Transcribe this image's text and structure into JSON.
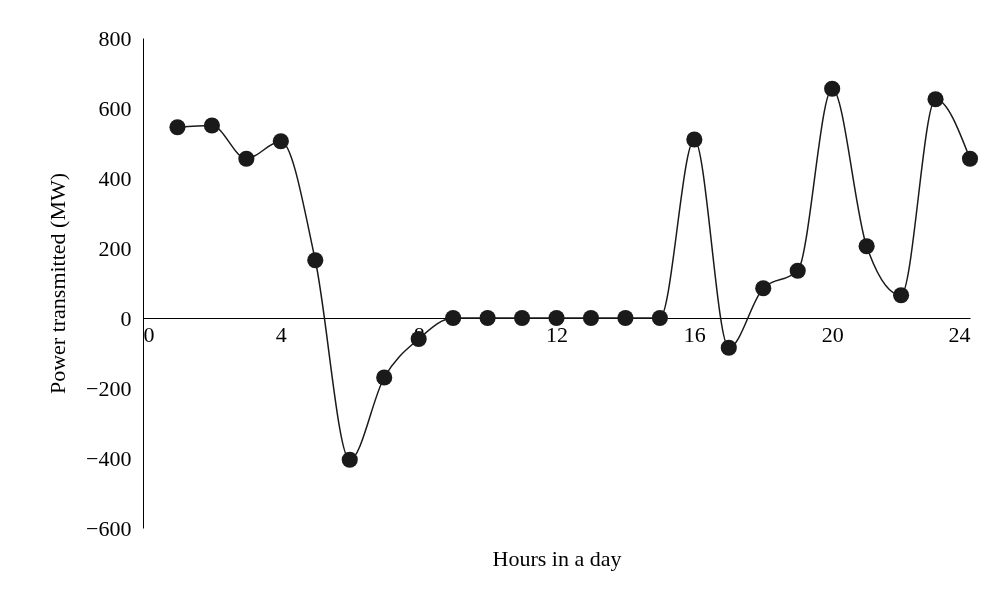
{
  "chart_data": {
    "type": "line",
    "xlabel": "Hours in a day",
    "ylabel": "Power transmitted (MW)",
    "x": [
      1,
      2,
      3,
      4,
      5,
      6,
      7,
      8,
      9,
      10,
      11,
      12,
      13,
      14,
      15,
      16,
      17,
      18,
      19,
      20,
      21,
      22,
      23,
      24
    ],
    "series": [
      {
        "color": "#1a1a1a",
        "values": [
          545,
          550,
          455,
          505,
          165,
          -405,
          -170,
          -60,
          0,
          0,
          0,
          0,
          0,
          0,
          0,
          510,
          -85,
          85,
          135,
          655,
          205,
          65,
          625,
          455
        ]
      }
    ],
    "xlim": [
      0,
      24
    ],
    "xticks": [
      0,
      4,
      8,
      12,
      16,
      20,
      24
    ],
    "ylim": [
      -600,
      800
    ],
    "yticks": [
      -600,
      -400,
      -200,
      0,
      200,
      400,
      600,
      800
    ],
    "grid": false,
    "legend": false,
    "marker": "circle",
    "line_style": "solid"
  }
}
